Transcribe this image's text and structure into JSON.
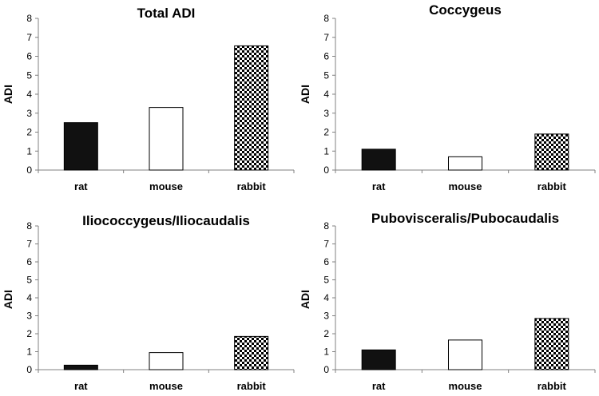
{
  "chart_data": [
    {
      "type": "bar",
      "title": "Total ADI",
      "ylabel": "ADI",
      "xlabel": "",
      "categories": [
        "rat",
        "mouse",
        "rabbit"
      ],
      "values": [
        2.5,
        3.3,
        6.55
      ],
      "ylim": [
        0,
        8
      ],
      "yticks": [
        "0",
        "1",
        "2",
        "3",
        "4",
        "5",
        "6",
        "7",
        "8"
      ],
      "patterns": [
        "solid-black",
        "white",
        "checker"
      ]
    },
    {
      "type": "bar",
      "title": "Coccygeus",
      "ylabel": "ADI",
      "xlabel": "",
      "categories": [
        "rat",
        "mouse",
        "rabbit"
      ],
      "values": [
        1.1,
        0.7,
        1.9
      ],
      "ylim": [
        0,
        8
      ],
      "yticks": [
        "0",
        "1",
        "2",
        "3",
        "4",
        "5",
        "6",
        "7",
        "8"
      ],
      "patterns": [
        "solid-black",
        "white",
        "checker"
      ]
    },
    {
      "type": "bar",
      "title": "Iliococcygeus/Iliocaudalis",
      "ylabel": "ADI",
      "xlabel": "",
      "categories": [
        "rat",
        "mouse",
        "rabbit"
      ],
      "values": [
        0.25,
        0.95,
        1.85
      ],
      "ylim": [
        0,
        8
      ],
      "yticks": [
        "0",
        "1",
        "2",
        "3",
        "4",
        "5",
        "6",
        "7",
        "8"
      ],
      "patterns": [
        "solid-black",
        "white",
        "checker"
      ]
    },
    {
      "type": "bar",
      "title": "Pubovisceralis/Pubocaudalis",
      "ylabel": "ADI",
      "xlabel": "",
      "categories": [
        "rat",
        "mouse",
        "rabbit"
      ],
      "values": [
        1.1,
        1.65,
        2.85
      ],
      "ylim": [
        0,
        8
      ],
      "yticks": [
        "0",
        "1",
        "2",
        "3",
        "4",
        "5",
        "6",
        "7",
        "8"
      ],
      "patterns": [
        "solid-black",
        "white",
        "checker"
      ]
    }
  ]
}
